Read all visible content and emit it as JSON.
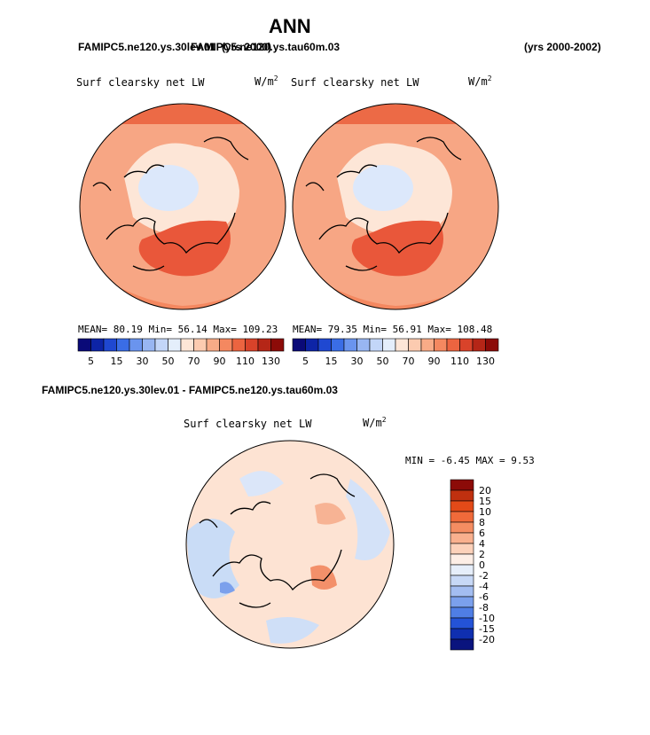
{
  "page_title": "ANN",
  "header": {
    "case_left": "FAMIPC5.ne120.ys.30lev.01",
    "case_right": "FAMIPC5.ne120.ys.tau60m.03",
    "yrs_mid": "(yrs 2000)",
    "yrs_right": "(yrs 2000-2002)"
  },
  "diff_title": "FAMIPC5.ne120.ys.30lev.01 - FAMIPC5.ne120.ys.tau60m.03",
  "colors": {
    "map_base": "#f7a684",
    "diff_base": "#fde3d3"
  },
  "chart_data": [
    {
      "type": "heatmap",
      "projection": "north-polar-stereographic",
      "title": "Surf clearsky net LW",
      "units": "W/m",
      "units_sup": "2",
      "stats": {
        "mean_label": "MEAN=",
        "mean": "80.19",
        "min_label": "Min=",
        "min": "56.14",
        "max_label": "Max=",
        "max": "109.23"
      },
      "colorbar": {
        "tick_labels": [
          "5",
          "15",
          "30",
          "50",
          "70",
          "90",
          "110",
          "130"
        ],
        "colors": [
          "#0a0a78",
          "#0d24a6",
          "#1f48d1",
          "#3a6de6",
          "#6a94ee",
          "#98b6f2",
          "#c3d6f8",
          "#e4eefb",
          "#fde6d7",
          "#fccbb0",
          "#f8ab87",
          "#f48860",
          "#ec6440",
          "#d9432a",
          "#b52617",
          "#8c0b08"
        ]
      }
    },
    {
      "type": "heatmap",
      "projection": "north-polar-stereographic",
      "title": "Surf clearsky net LW",
      "units": "W/m",
      "units_sup": "2",
      "stats": {
        "mean_label": "MEAN=",
        "mean": "79.35",
        "min_label": "Min=",
        "min": "56.91",
        "max_label": "Max=",
        "max": "108.48"
      },
      "colorbar": {
        "tick_labels": [
          "5",
          "15",
          "30",
          "50",
          "70",
          "90",
          "110",
          "130"
        ],
        "colors": [
          "#0a0a78",
          "#0d24a6",
          "#1f48d1",
          "#3a6de6",
          "#6a94ee",
          "#98b6f2",
          "#c3d6f8",
          "#e4eefb",
          "#fde6d7",
          "#fccbb0",
          "#f8ab87",
          "#f48860",
          "#ec6440",
          "#d9432a",
          "#b52617",
          "#8c0b08"
        ]
      }
    },
    {
      "type": "heatmap",
      "projection": "north-polar-stereographic",
      "title": "Surf clearsky net LW",
      "units": "W/m",
      "units_sup": "2",
      "stats": {
        "min_label": "MIN =",
        "min": "-6.45",
        "max_label": "MAX =",
        "max": "9.53"
      },
      "colorbar": {
        "orientation": "vertical",
        "tick_labels": [
          "20",
          "15",
          "10",
          "8",
          "6",
          "4",
          "2",
          "0",
          "-2",
          "-4",
          "-6",
          "-8",
          "-10",
          "-15",
          "-20"
        ],
        "colors": [
          "#8c0b08",
          "#c0300f",
          "#e34a18",
          "#f06a3a",
          "#f58d62",
          "#f9b08e",
          "#fcd1ba",
          "#fdeee6",
          "#e6eefa",
          "#c7d8f6",
          "#a3bdf1",
          "#7ba0ec",
          "#4f7ee5",
          "#2453d7",
          "#0f2fb0",
          "#0a147e"
        ]
      }
    }
  ]
}
